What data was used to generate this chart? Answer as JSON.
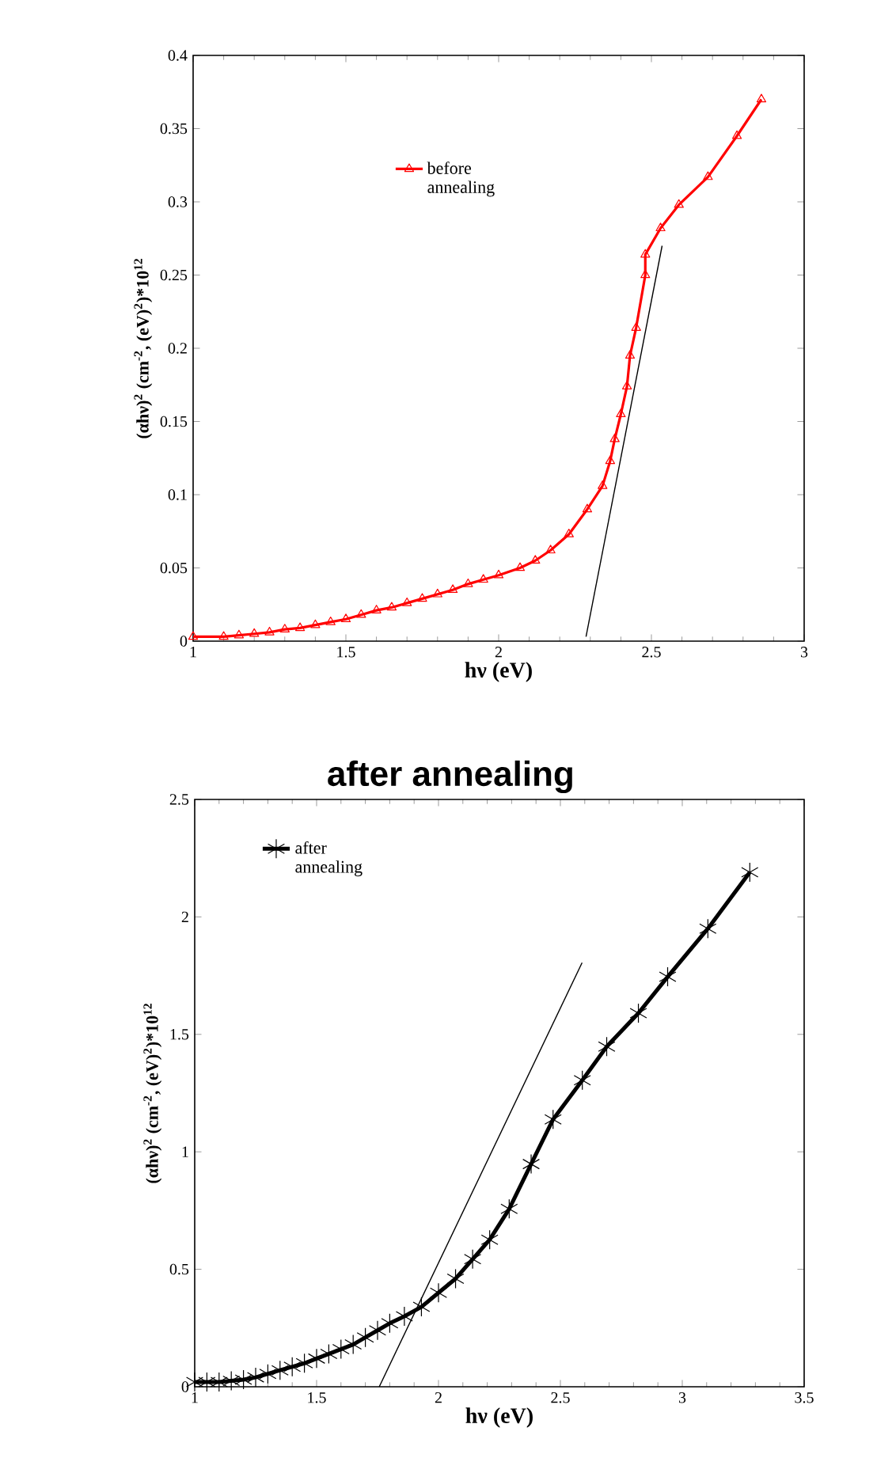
{
  "chart_data": [
    {
      "type": "line",
      "xlabel": "hν (eV)",
      "ylabel": "(αhν)$^{2}$ (cm$^{-2}$, (eV)$^{2}$)*10$^{12}$",
      "xlim": [
        1,
        3
      ],
      "xticks": [
        1,
        1.5,
        2,
        2.5,
        3
      ],
      "ylim": [
        0,
        0.4
      ],
      "yticks": [
        0,
        0.05,
        0.1,
        0.15,
        0.2,
        0.25,
        0.3,
        0.35,
        0.4
      ],
      "legend": "top",
      "marker": "triangle",
      "line_style": "solid",
      "series": [
        {
          "name": "before annealing",
          "color": "#ff0000",
          "x": [
            1.0,
            1.1,
            1.15,
            1.2,
            1.25,
            1.3,
            1.35,
            1.4,
            1.45,
            1.5,
            1.55,
            1.6,
            1.65,
            1.7,
            1.75,
            1.8,
            1.85,
            1.9,
            1.95,
            2.0,
            2.07,
            2.12,
            2.17,
            2.23,
            2.29,
            2.34,
            2.365,
            2.38,
            2.4,
            2.42,
            2.43,
            2.45,
            2.48,
            2.48,
            2.53,
            2.59,
            2.685,
            2.78,
            2.86
          ],
          "values": [
            0.003,
            0.003,
            0.004,
            0.005,
            0.006,
            0.008,
            0.009,
            0.011,
            0.013,
            0.015,
            0.018,
            0.021,
            0.023,
            0.026,
            0.029,
            0.032,
            0.035,
            0.039,
            0.042,
            0.045,
            0.05,
            0.055,
            0.062,
            0.073,
            0.09,
            0.106,
            0.123,
            0.138,
            0.155,
            0.174,
            0.195,
            0.214,
            0.25,
            0.264,
            0.282,
            0.298,
            0.317,
            0.345,
            0.37
          ]
        },
        {
          "type": "line",
          "color": "#000000",
          "marker": "none",
          "x": [
            2.286,
            2.535
          ],
          "values": [
            0.003,
            0.27
          ]
        }
      ]
    },
    {
      "type": "line",
      "title": "after annealing",
      "xlabel": "hν (eV)",
      "ylabel": "(αhν)$^{2}$ (cm$^{-2}$, (eV)$^{2}$)*10$^{12}$",
      "xlim": [
        1,
        3.5
      ],
      "xticks": [
        1,
        1.5,
        2,
        2.5,
        3,
        3.5
      ],
      "ylim": [
        0,
        2.5
      ],
      "yticks": [
        0,
        0.5,
        1,
        1.5,
        2,
        2.5
      ],
      "legend": "top left",
      "marker": "cross",
      "line_style": "solid",
      "series": [
        {
          "name": "after annealing",
          "color": "#000000",
          "x": [
            1.0,
            1.05,
            1.1,
            1.15,
            1.2,
            1.25,
            1.3,
            1.35,
            1.4,
            1.45,
            1.5,
            1.55,
            1.6,
            1.65,
            1.7,
            1.75,
            1.8,
            1.86,
            1.93,
            2.0,
            2.07,
            2.14,
            2.21,
            2.29,
            2.38,
            2.47,
            2.59,
            2.69,
            2.82,
            2.94,
            3.105,
            3.277
          ],
          "values": [
            0.02,
            0.02,
            0.02,
            0.025,
            0.03,
            0.04,
            0.055,
            0.07,
            0.085,
            0.1,
            0.12,
            0.14,
            0.16,
            0.18,
            0.21,
            0.24,
            0.27,
            0.3,
            0.34,
            0.4,
            0.46,
            0.543,
            0.626,
            0.757,
            0.948,
            1.138,
            1.305,
            1.448,
            1.59,
            1.745,
            1.95,
            2.19
          ]
        },
        {
          "type": "line",
          "color": "#000000",
          "marker": "none",
          "x": [
            1.757,
            2.589
          ],
          "values": [
            0,
            1.805
          ]
        }
      ]
    }
  ]
}
